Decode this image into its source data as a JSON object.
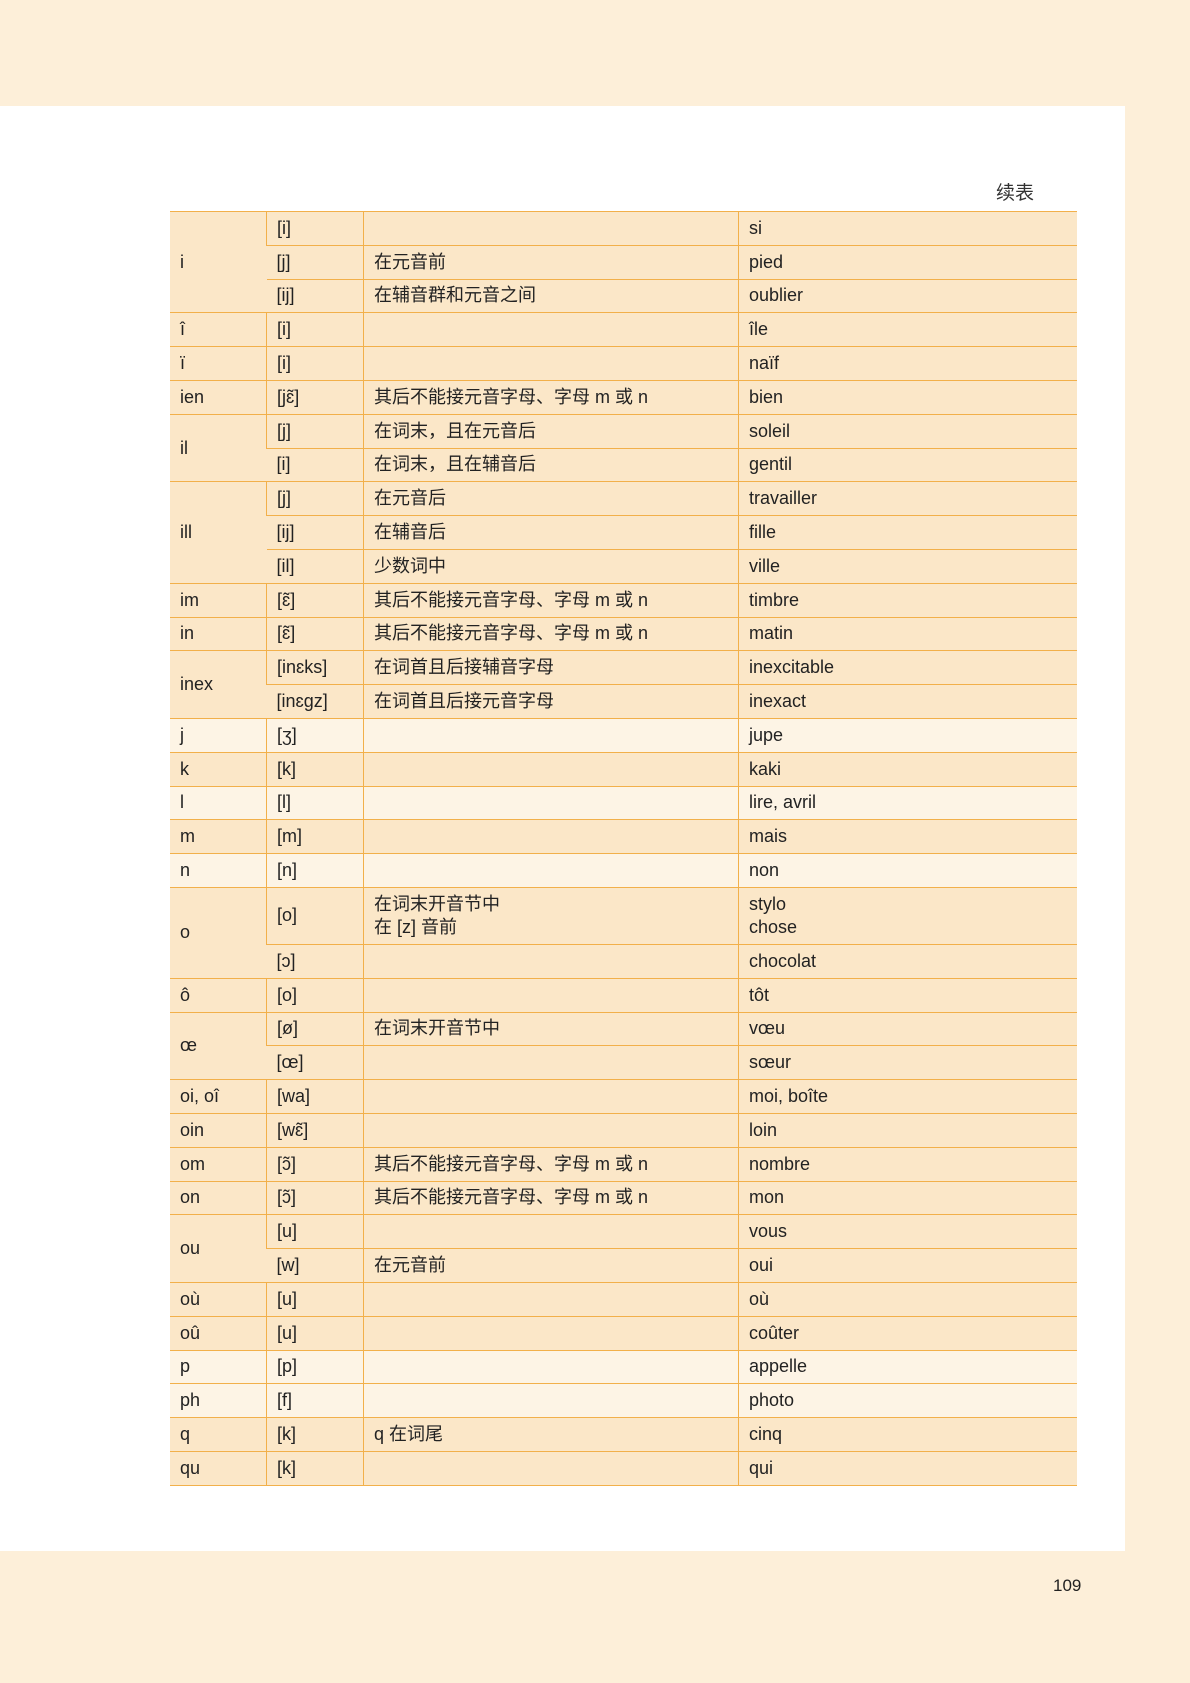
{
  "header": {
    "continued_label": "续表"
  },
  "page_number": "109",
  "colors": {
    "border": "#f2b04a",
    "row_dark": "#fbe7c8",
    "row_light": "#fdf4e5",
    "page_bg": "#fdefd9"
  },
  "groups": [
    {
      "letter": "i",
      "shade": "dark",
      "rows": [
        [
          "[i]",
          "",
          "si"
        ],
        [
          "[j]",
          "在元音前",
          "pied"
        ],
        [
          "[ij]",
          "在辅音群和元音之间",
          "oublier"
        ]
      ]
    },
    {
      "letter": "î",
      "shade": "dark",
      "rows": [
        [
          "[i]",
          "",
          "île"
        ]
      ]
    },
    {
      "letter": "ï",
      "shade": "dark",
      "rows": [
        [
          "[i]",
          "",
          "naïf"
        ]
      ]
    },
    {
      "letter": "ien",
      "shade": "dark",
      "rows": [
        [
          "[jɛ̃]",
          "其后不能接元音字母、字母 m 或 n",
          "bien"
        ]
      ]
    },
    {
      "letter": "il",
      "shade": "dark",
      "rows": [
        [
          "[j]",
          "在词末，且在元音后",
          "soleil"
        ],
        [
          "[i]",
          "在词末，且在辅音后",
          "gentil"
        ]
      ]
    },
    {
      "letter": "ill",
      "shade": "dark",
      "rows": [
        [
          "[j]",
          "在元音后",
          "travailler"
        ],
        [
          "[ij]",
          "在辅音后",
          "fille"
        ],
        [
          "[il]",
          "少数词中",
          "ville"
        ]
      ]
    },
    {
      "letter": "im",
      "shade": "dark",
      "rows": [
        [
          "[ɛ̃]",
          "其后不能接元音字母、字母 m 或 n",
          "timbre"
        ]
      ]
    },
    {
      "letter": "in",
      "shade": "dark",
      "rows": [
        [
          "[ɛ̃]",
          "其后不能接元音字母、字母 m 或 n",
          "matin"
        ]
      ]
    },
    {
      "letter": "inex",
      "shade": "dark",
      "rows": [
        [
          "[inɛks]",
          "在词首且后接辅音字母",
          "inexcitable"
        ],
        [
          "[inɛgz]",
          "在词首且后接元音字母",
          "inexact"
        ]
      ]
    },
    {
      "letter": "j",
      "shade": "light",
      "rows": [
        [
          "[ʒ]",
          "",
          "jupe"
        ]
      ]
    },
    {
      "letter": "k",
      "shade": "dark",
      "rows": [
        [
          "[k]",
          "",
          "kaki"
        ]
      ]
    },
    {
      "letter": "l",
      "shade": "light",
      "rows": [
        [
          "[l]",
          "",
          "lire, avril"
        ]
      ]
    },
    {
      "letter": "m",
      "shade": "dark",
      "rows": [
        [
          "[m]",
          "",
          "mais"
        ]
      ]
    },
    {
      "letter": "n",
      "shade": "light",
      "rows": [
        [
          "[n]",
          "",
          "non"
        ]
      ]
    },
    {
      "letter": "o",
      "shade": "dark",
      "rows": [
        [
          "[o]",
          "在词末开音节中\n在 [z] 音前",
          "stylo\nchose"
        ],
        [
          "[ɔ]",
          "",
          "chocolat"
        ]
      ]
    },
    {
      "letter": "ô",
      "shade": "dark",
      "rows": [
        [
          "[o]",
          "",
          "tôt"
        ]
      ]
    },
    {
      "letter": "œ",
      "shade": "dark",
      "rows": [
        [
          "[ø]",
          "在词末开音节中",
          "vœu"
        ],
        [
          "[œ]",
          "",
          "sœur"
        ]
      ]
    },
    {
      "letter": "oi, oî",
      "shade": "dark",
      "rows": [
        [
          "[wa]",
          "",
          "moi, boîte"
        ]
      ]
    },
    {
      "letter": "oin",
      "shade": "dark",
      "rows": [
        [
          "[wɛ̃]",
          "",
          "loin"
        ]
      ]
    },
    {
      "letter": "om",
      "shade": "dark",
      "rows": [
        [
          "[ɔ̃]",
          "其后不能接元音字母、字母 m 或 n",
          "nombre"
        ]
      ]
    },
    {
      "letter": "on",
      "shade": "dark",
      "rows": [
        [
          "[ɔ̃]",
          "其后不能接元音字母、字母 m 或 n",
          "mon"
        ]
      ]
    },
    {
      "letter": "ou",
      "shade": "dark",
      "rows": [
        [
          "[u]",
          "",
          "vous"
        ],
        [
          "[w]",
          "在元音前",
          "oui"
        ]
      ]
    },
    {
      "letter": "où",
      "shade": "dark",
      "rows": [
        [
          "[u]",
          "",
          "où"
        ]
      ]
    },
    {
      "letter": "oû",
      "shade": "dark",
      "rows": [
        [
          "[u]",
          "",
          "coûter"
        ]
      ]
    },
    {
      "letter": "p",
      "shade": "light",
      "rows": [
        [
          "[p]",
          "",
          "appelle"
        ]
      ]
    },
    {
      "letter": "ph",
      "shade": "light",
      "rows": [
        [
          "[f]",
          "",
          "photo"
        ]
      ]
    },
    {
      "letter": "q",
      "shade": "dark",
      "rows": [
        [
          "[k]",
          "q 在词尾",
          "cinq"
        ]
      ]
    },
    {
      "letter": "qu",
      "shade": "dark",
      "rows": [
        [
          "[k]",
          "",
          "qui"
        ]
      ]
    }
  ]
}
